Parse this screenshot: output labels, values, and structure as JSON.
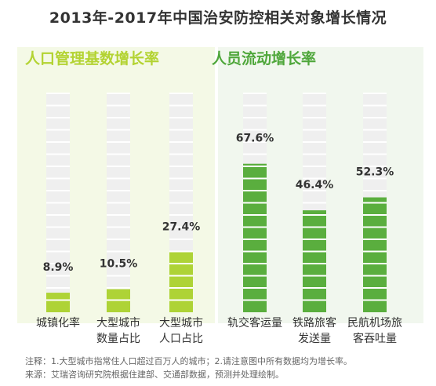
{
  "title": "2013年-2017年中国治安防控相关对象增长情况",
  "colors": {
    "panel_left_bg": "#f4f9e6",
    "panel_right_bg": "#f1f7ee",
    "group_left_title": "#b3d332",
    "group_right_title": "#4fa73b",
    "bar_left": "#aed336",
    "bar_right": "#5aae3e",
    "track": "#efefef",
    "track_line": "#ffffff",
    "text": "#333333"
  },
  "chart_data": {
    "type": "bar",
    "title": "2013年-2017年中国治安防控相关对象增长情况",
    "ylim": [
      0,
      100
    ],
    "groups": [
      {
        "name": "人口管理基数增长率",
        "color": "#aed336",
        "bars": [
          {
            "label": [
              "城镇化率"
            ],
            "value": 8.9,
            "display": "8.9%"
          },
          {
            "label": [
              "大型城市",
              "数量占比"
            ],
            "value": 10.5,
            "display": "10.5%"
          },
          {
            "label": [
              "大型城市",
              "人口占比"
            ],
            "value": 27.4,
            "display": "27.4%"
          }
        ]
      },
      {
        "name": "人员流动增长率",
        "color": "#5aae3e",
        "bars": [
          {
            "label": [
              "轨交客运量"
            ],
            "value": 67.6,
            "display": "67.6%"
          },
          {
            "label": [
              "铁路旅客",
              "发送量"
            ],
            "value": 46.4,
            "display": "46.4%"
          },
          {
            "label": [
              "民航机场旅",
              "客吞吐量"
            ],
            "value": 52.3,
            "display": "52.3%"
          }
        ]
      }
    ]
  },
  "notes": {
    "note": "注释：1.大型城市指常住人口超过百万人的城市；2.请注意图中所有数据均为增长率。",
    "source": "来源：艾瑞咨询研究院根据住建部、交通部数据，预测并处理绘制。"
  }
}
